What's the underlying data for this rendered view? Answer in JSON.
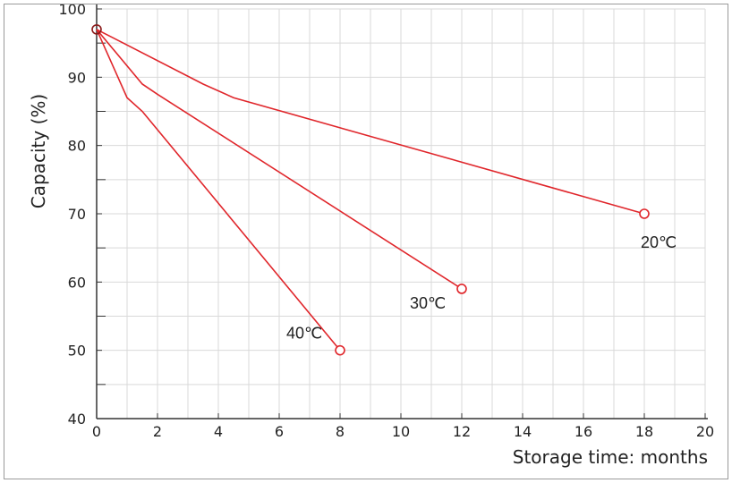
{
  "chart_data": {
    "type": "line",
    "xlabel": "Storage time: months",
    "ylabel": "Capacity (%)",
    "xlim": [
      0,
      20
    ],
    "ylim": [
      40,
      100
    ],
    "x_ticks": [
      0,
      2,
      4,
      6,
      8,
      10,
      12,
      14,
      16,
      18,
      20
    ],
    "y_ticks": [
      40,
      50,
      60,
      70,
      80,
      90,
      100
    ],
    "grid": true,
    "line_color": "#e0262b",
    "grid_color": "#d9d9d9",
    "series": [
      {
        "name": "20℃",
        "x": [
          0,
          3.5,
          4.5,
          18
        ],
        "y": [
          97,
          89,
          87,
          70
        ]
      },
      {
        "name": "30℃",
        "x": [
          0,
          1.5,
          2,
          12
        ],
        "y": [
          97,
          89,
          87.5,
          59
        ]
      },
      {
        "name": "40℃",
        "x": [
          0,
          1,
          1.5,
          8
        ],
        "y": [
          97,
          87,
          85,
          50
        ]
      }
    ]
  }
}
